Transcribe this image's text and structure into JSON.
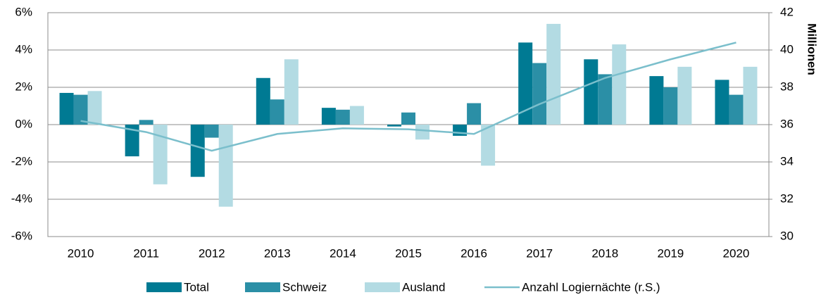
{
  "chart_data": {
    "type": "bar",
    "categories": [
      "2010",
      "2011",
      "2012",
      "2013",
      "2014",
      "2015",
      "2016",
      "2017",
      "2018",
      "2019",
      "2020"
    ],
    "series": [
      {
        "name": "Total",
        "color": "#007a93",
        "values": [
          1.7,
          -1.7,
          -2.8,
          2.5,
          0.9,
          -0.1,
          -0.6,
          4.4,
          3.5,
          2.6,
          2.4
        ]
      },
      {
        "name": "Schweiz",
        "color": "#2b8fa6",
        "values": [
          1.6,
          0.25,
          -0.7,
          1.35,
          0.8,
          0.65,
          1.15,
          3.3,
          2.7,
          2.0,
          1.6
        ]
      },
      {
        "name": "Ausland",
        "color": "#b3dbe3",
        "values": [
          1.8,
          -3.2,
          -4.4,
          3.5,
          1.0,
          -0.8,
          -2.2,
          5.4,
          4.3,
          3.1,
          3.1
        ]
      },
      {
        "name": "Anzahl Logiernächte (r.S.)",
        "color": "#7bbfcc",
        "type": "line",
        "axis": "y2",
        "values": [
          36.2,
          35.6,
          34.6,
          35.5,
          35.8,
          35.75,
          35.5,
          37.1,
          38.5,
          39.5,
          40.4
        ]
      }
    ],
    "ylim": [
      -6,
      6
    ],
    "yticks": [
      {
        "value": -6,
        "label": "-6%"
      },
      {
        "value": -4,
        "label": "-4%"
      },
      {
        "value": -2,
        "label": "-2%"
      },
      {
        "value": 0,
        "label": "0%"
      },
      {
        "value": 2,
        "label": "2%"
      },
      {
        "value": 4,
        "label": "4%"
      },
      {
        "value": 6,
        "label": "6%"
      }
    ],
    "y2lim": [
      30,
      42
    ],
    "y2ticks": [
      30,
      32,
      34,
      36,
      38,
      40,
      42
    ],
    "y2label": "Millionen",
    "grid": true,
    "legend": "bottom"
  }
}
